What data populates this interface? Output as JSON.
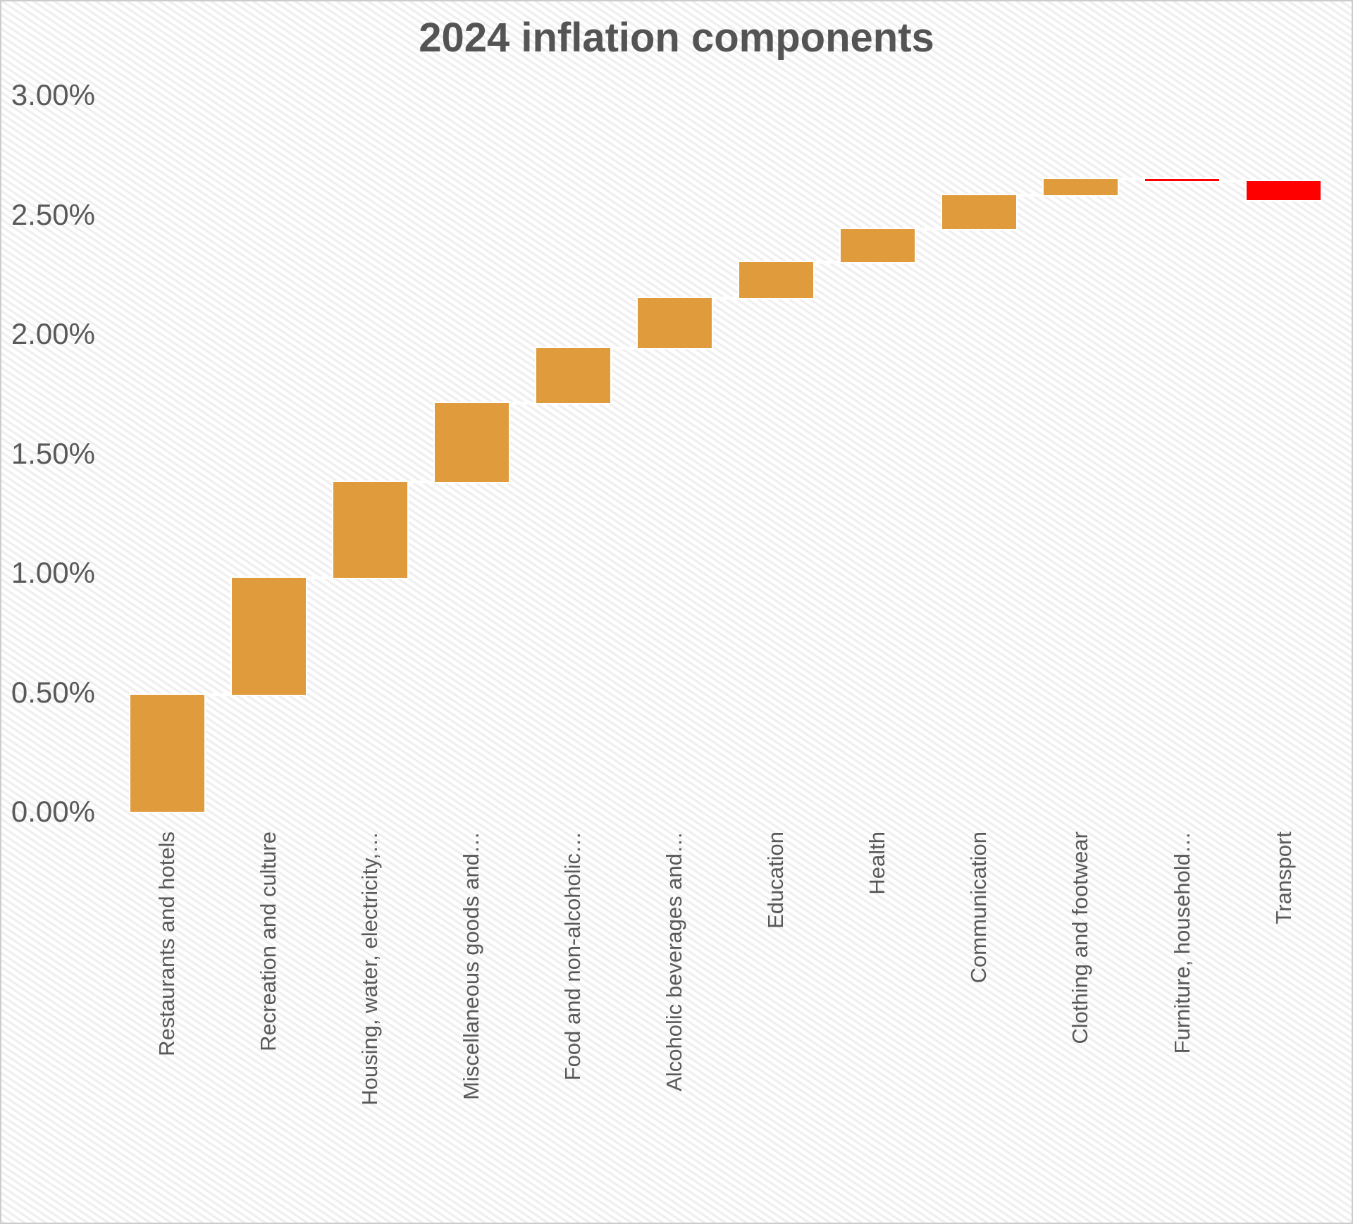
{
  "title": "2024 inflation components",
  "chart_data": {
    "type": "bar",
    "subtype": "waterfall",
    "title": "2024 inflation components",
    "categories": [
      "Restaurants and hotels",
      "Recreation and culture",
      "Housing, water, electricity,…",
      "Miscellaneous goods and…",
      "Food and non-alcoholic…",
      "Alcoholic beverages and…",
      "Education",
      "Health",
      "Communication",
      "Clothing and footwear",
      "Furniture, household…",
      "Transport"
    ],
    "values_pct": [
      0.49,
      0.49,
      0.4,
      0.33,
      0.23,
      0.21,
      0.15,
      0.14,
      0.14,
      0.07,
      -0.01,
      -0.08
    ],
    "cumulative_pct": [
      0.49,
      0.98,
      1.38,
      1.71,
      1.94,
      2.15,
      2.3,
      2.44,
      2.58,
      2.65,
      2.64,
      2.56
    ],
    "total_pct": 2.56,
    "y_ticks": [
      "3.00%",
      "2.50%",
      "2.00%",
      "1.50%",
      "1.00%",
      "0.50%",
      "0.00%"
    ],
    "ylim": [
      0,
      3
    ],
    "ytick_step_pct": 0.5,
    "grid": false,
    "legend": false,
    "increase_color": "#E09B3C",
    "decrease_color": "#FF0000",
    "connector_color": "#FFFFFF",
    "axis_label_color": "#595959",
    "title_color": "#545454"
  }
}
